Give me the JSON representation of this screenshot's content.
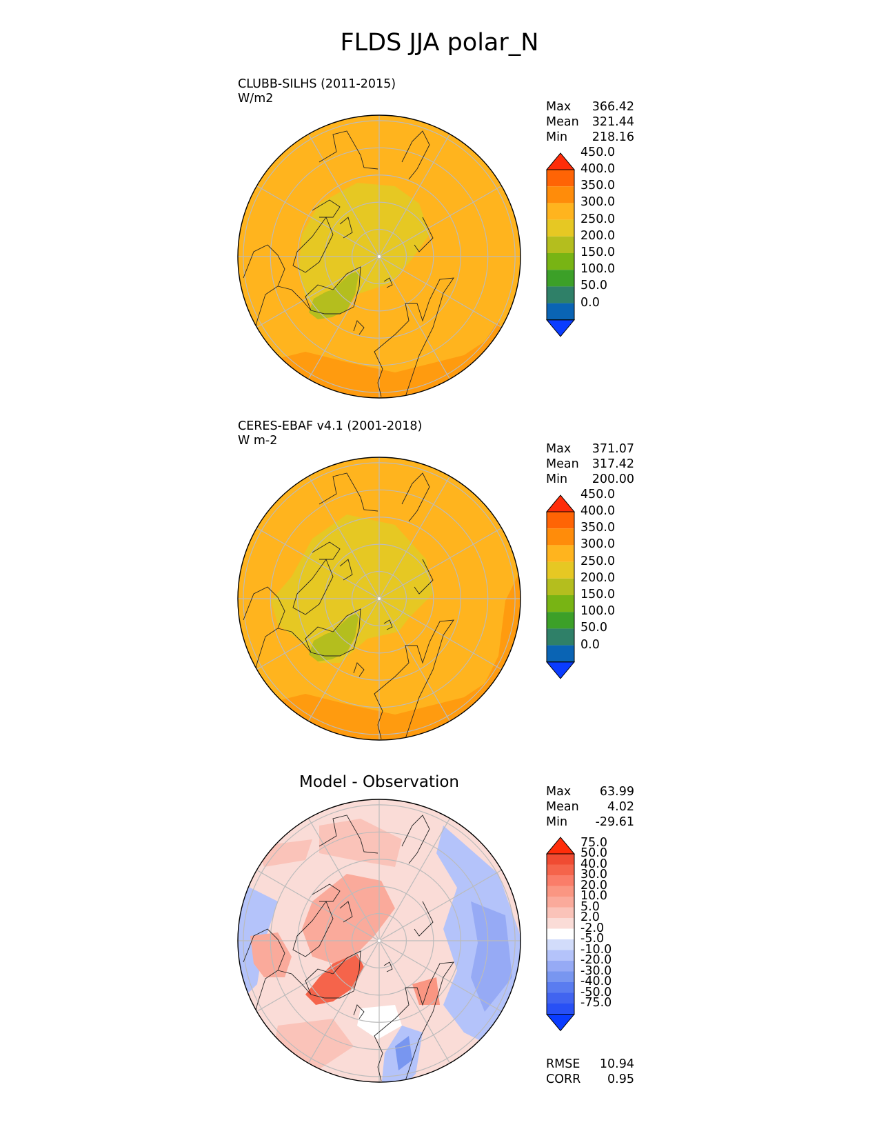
{
  "title": "FLDS JJA polar_N",
  "panels": [
    {
      "name": "CLUBB-SILHS (2011-2015)",
      "units": "W/m2",
      "stats": {
        "max_label": "Max",
        "max": "366.42",
        "mean_label": "Mean",
        "mean": "321.44",
        "min_label": "Min",
        "min": "218.16"
      }
    },
    {
      "name": "CERES-EBAF v4.1 (2001-2018)",
      "units": "W m-2",
      "stats": {
        "max_label": "Max",
        "max": "371.07",
        "mean_label": "Mean",
        "mean": "317.42",
        "min_label": "Min",
        "min": "200.00"
      }
    },
    {
      "name": "Model - Observation",
      "stats": {
        "max_label": "Max",
        "max": "63.99",
        "mean_label": "Mean",
        "mean": "4.02",
        "min_label": "Min",
        "min": "-29.61"
      },
      "metrics": {
        "rmse_label": "RMSE",
        "rmse": "10.94",
        "corr_label": "CORR",
        "corr": "0.95"
      }
    }
  ],
  "colorbar_fields": {
    "levels": [
      "0.0",
      "50.0",
      "100.0",
      "150.0",
      "200.0",
      "250.0",
      "300.0",
      "350.0",
      "400.0",
      "450.0"
    ],
    "colors": [
      "#0a3cff",
      "#0a64b4",
      "#2f8068",
      "#3ca028",
      "#78b414",
      "#b4be1e",
      "#e6c823",
      "#ffb41e",
      "#ff8c0a",
      "#ff6405",
      "#ff2d0a"
    ]
  },
  "colorbar_diff": {
    "levels": [
      "-75.0",
      "-50.0",
      "-40.0",
      "-30.0",
      "-20.0",
      "-10.0",
      "-5.0",
      "-2.0",
      "2.0",
      "5.0",
      "10.0",
      "20.0",
      "30.0",
      "40.0",
      "50.0",
      "75.0"
    ],
    "colors": [
      "#0a3cff",
      "#2850f5",
      "#4164f0",
      "#5a7cf0",
      "#7896f0",
      "#96aaf5",
      "#b4c3fa",
      "#d2dcfa",
      "#ffffff",
      "#fadcd7",
      "#fac3b9",
      "#faaa9b",
      "#fa9682",
      "#fa7d69",
      "#f5644b",
      "#f04b32",
      "#ff2d0a"
    ]
  }
}
